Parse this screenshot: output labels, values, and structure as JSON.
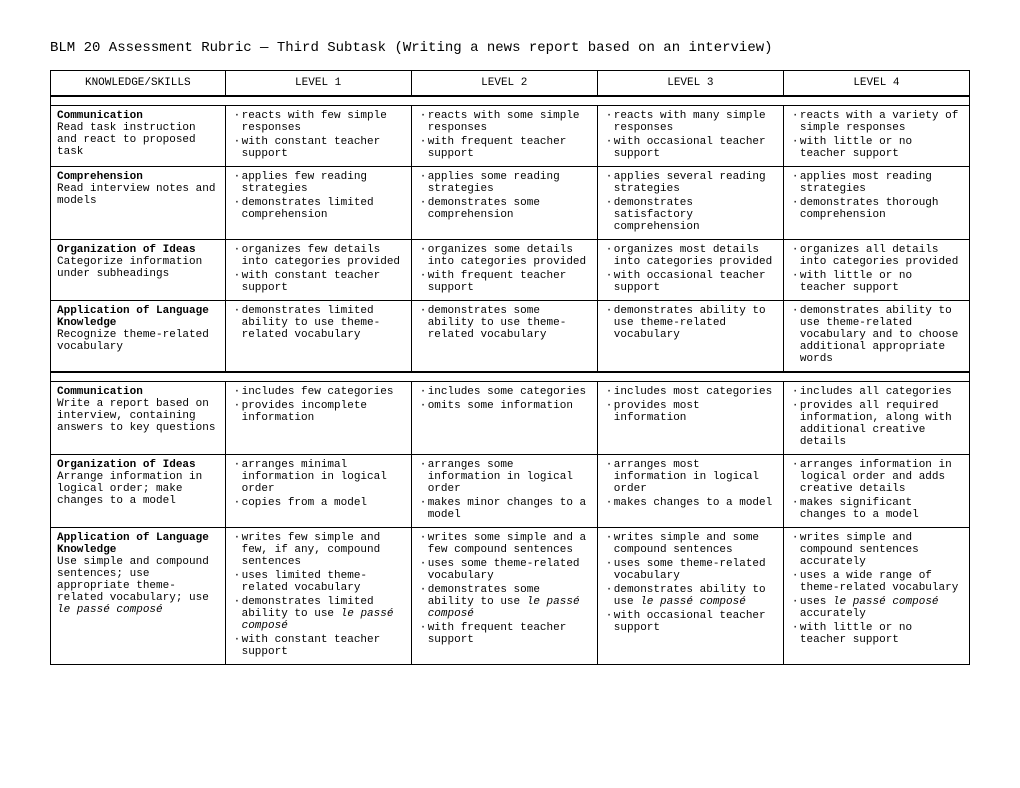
{
  "title": "BLM 20 Assessment Rubric — Third Subtask (Writing a news report based on an interview)",
  "headers": [
    "KNOWLEDGE/SKILLS",
    "LEVEL 1",
    "LEVEL 2",
    "LEVEL 3",
    "LEVEL 4"
  ],
  "rows": [
    {
      "cat": "Communication",
      "sub": "Read task instruction and react to proposed task",
      "l1": [
        "reacts with few simple responses",
        "with constant teacher support"
      ],
      "l2": [
        "reacts with some simple responses",
        "with frequent teacher support"
      ],
      "l3": [
        "reacts with many simple responses",
        "with occasional teacher support"
      ],
      "l4": [
        "reacts with a variety of simple responses",
        "with little or no teacher support"
      ]
    },
    {
      "cat": "Comprehension",
      "sub": "Read interview notes and models",
      "l1": [
        "applies few reading strategies",
        "demonstrates limited comprehension"
      ],
      "l2": [
        "applies some reading strategies",
        "demonstrates some comprehension"
      ],
      "l3": [
        "applies several reading strategies",
        "demonstrates satisfactory comprehension"
      ],
      "l4": [
        "applies most reading strategies",
        "demonstrates thorough comprehension"
      ]
    },
    {
      "cat": "Organization of Ideas",
      "sub": "Categorize information under subheadings",
      "l1": [
        "organizes few details into categories provided",
        "with constant teacher support"
      ],
      "l2": [
        "organizes some details into categories provided",
        "with frequent teacher support"
      ],
      "l3": [
        "organizes most details into categories provided",
        "with occasional teacher support"
      ],
      "l4": [
        "organizes all details into categories provided",
        "with little or no teacher support"
      ]
    },
    {
      "cat": "Application of Language Knowledge",
      "sub": "Recognize theme-related vocabulary",
      "l1": [
        "demonstrates limited ability to use theme-related vocabulary"
      ],
      "l2": [
        "demonstrates some ability to use theme-related vocabulary"
      ],
      "l3": [
        "demonstrates ability to use theme-related vocabulary"
      ],
      "l4": [
        "demonstrates ability to use theme-related vocabulary and to choose additional appropriate words"
      ]
    },
    {
      "cat": "Communication",
      "sub": "Write a report based on interview, containing answers to key questions",
      "l1": [
        "includes few categories",
        "provides incomplete information"
      ],
      "l2": [
        "includes some categories",
        "omits some information"
      ],
      "l3": [
        "includes most categories",
        "provides most information"
      ],
      "l4": [
        "includes all categories",
        "provides all required information, along with additional creative details"
      ]
    },
    {
      "cat": "Organization of Ideas",
      "sub": "Arrange information in logical order; make changes to a model",
      "l1": [
        "arranges minimal information in logical order",
        "copies from a model"
      ],
      "l2": [
        "arranges some information in logical order",
        "makes minor changes to a model"
      ],
      "l3": [
        "arranges most information in logical order",
        "makes changes to a model"
      ],
      "l4": [
        "arranges information in logical order and adds creative details",
        "makes significant changes to a model"
      ]
    },
    {
      "cat": "Application of Language Knowledge",
      "sub": "Use simple and compound sentences; use appropriate theme-related vocabulary; use <em>le passé composé</em>",
      "l1": [
        "writes few simple and few, if any, compound sentences",
        "uses limited theme-related vocabulary",
        "demonstrates limited ability to use <em>le passé composé</em>",
        "with constant teacher support"
      ],
      "l2": [
        "writes some simple and a few compound sentences",
        "uses some theme-related vocabulary",
        "demonstrates some ability to use <em>le passé composé</em>",
        "with frequent teacher support"
      ],
      "l3": [
        "writes simple and some compound sentences",
        "uses some theme-related vocabulary",
        "demonstrates ability to use <em>le passé composé</em>",
        "with occasional teacher support"
      ],
      "l4": [
        "writes simple and compound sentences accurately",
        "uses a wide range of theme-related vocabulary",
        "uses <em>le passé composé</em> accurately",
        "with little or no teacher support"
      ]
    }
  ],
  "spacer_after": [
    3
  ]
}
